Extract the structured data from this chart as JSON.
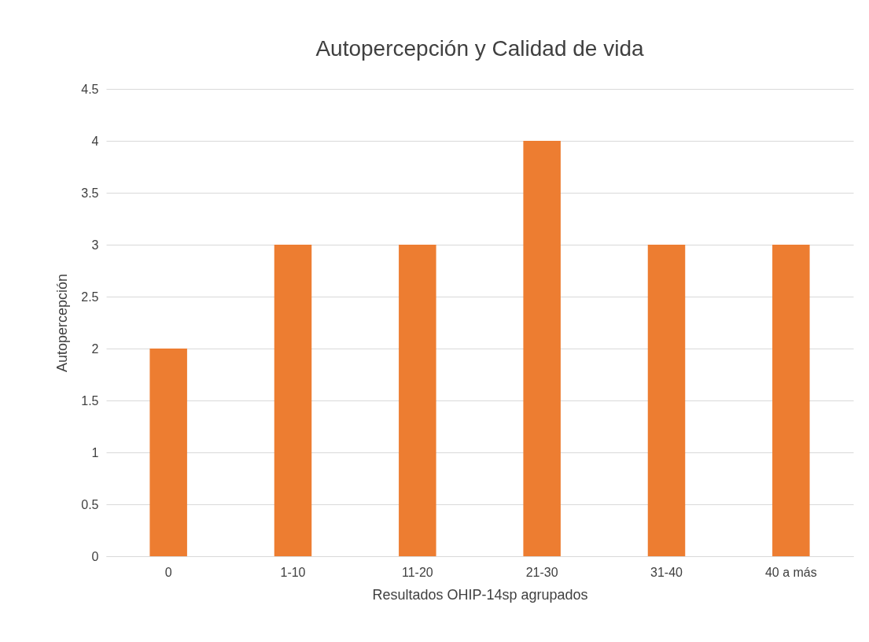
{
  "chart_data": {
    "type": "bar",
    "title": "Autopercepción y Calidad de vida",
    "xlabel": "Resultados OHIP-14sp agrupados",
    "ylabel": "Autopercepción",
    "categories": [
      "0",
      "1-10",
      "11-20",
      "21-30",
      "31-40",
      "40 a más"
    ],
    "values": [
      2,
      3,
      3,
      4,
      3,
      3
    ],
    "color": "#ed7d31",
    "ylim": [
      0,
      4.5
    ],
    "yticks": [
      0,
      0.5,
      1,
      1.5,
      2,
      2.5,
      3,
      3.5,
      4,
      4.5
    ],
    "grid": "y"
  }
}
